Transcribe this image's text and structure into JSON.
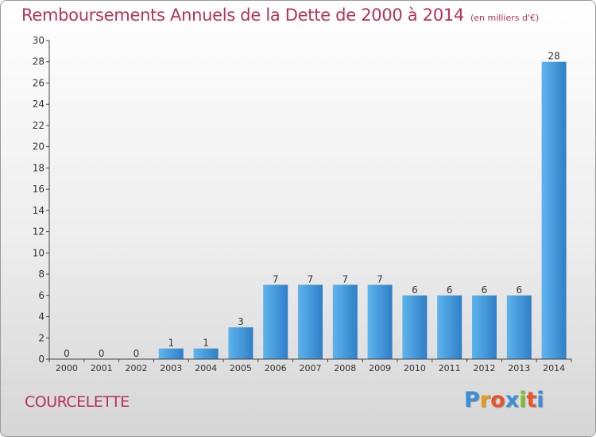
{
  "title": "Remboursements Annuels de la Dette de 2000 à 2014",
  "subtitle": "(en milliers d'€)",
  "commune": "COURCELETTE",
  "brand": {
    "letters": [
      "P",
      "r",
      "o",
      "x",
      "i",
      "t",
      "i"
    ],
    "colors": [
      "#3a8fd8",
      "#e89a1a",
      "#e8542a",
      "#3a8fd8",
      "#7cbf2a",
      "#e8542a",
      "#3a8fd8"
    ]
  },
  "colors": {
    "title": "#b5325a",
    "bar_light": "#5db4ec",
    "bar_dark": "#2f7fc8"
  },
  "chart_data": {
    "type": "bar",
    "categories": [
      "2000",
      "2001",
      "2002",
      "2003",
      "2004",
      "2005",
      "2006",
      "2007",
      "2008",
      "2009",
      "2010",
      "2011",
      "2012",
      "2013",
      "2014"
    ],
    "values": [
      0,
      0,
      0,
      1,
      1,
      3,
      7,
      7,
      7,
      7,
      6,
      6,
      6,
      6,
      28
    ],
    "ylim": [
      0,
      30
    ],
    "yticks": [
      0,
      2,
      4,
      6,
      8,
      10,
      12,
      14,
      16,
      18,
      20,
      22,
      24,
      26,
      28,
      30
    ],
    "grid": false,
    "data_labels": true
  }
}
